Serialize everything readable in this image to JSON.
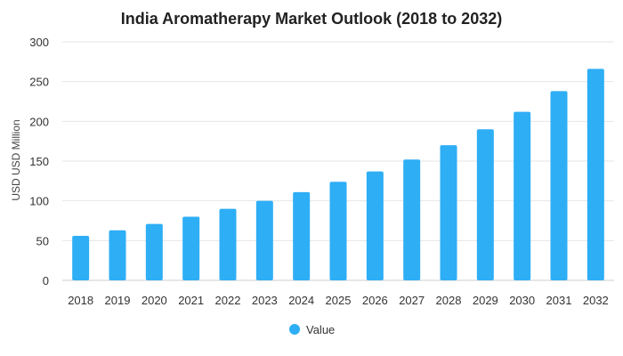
{
  "chart_data": {
    "type": "bar",
    "title": "India Aromatherapy Market Outlook (2018 to 2032)",
    "ylabel": "USD USD Million",
    "xlabel": "",
    "categories": [
      "2018",
      "2019",
      "2020",
      "2021",
      "2022",
      "2023",
      "2024",
      "2025",
      "2026",
      "2027",
      "2028",
      "2029",
      "2030",
      "2031",
      "2032"
    ],
    "series": [
      {
        "name": "Value",
        "values": [
          56,
          63,
          71,
          80,
          90,
          100,
          111,
          124,
          137,
          152,
          170,
          190,
          212,
          238,
          266
        ]
      }
    ],
    "ylim": [
      0,
      300
    ],
    "yticks": [
      0,
      50,
      100,
      150,
      200,
      250,
      300
    ],
    "grid": true,
    "legend_position": "bottom-center",
    "bar_color": "#2eaef5"
  }
}
